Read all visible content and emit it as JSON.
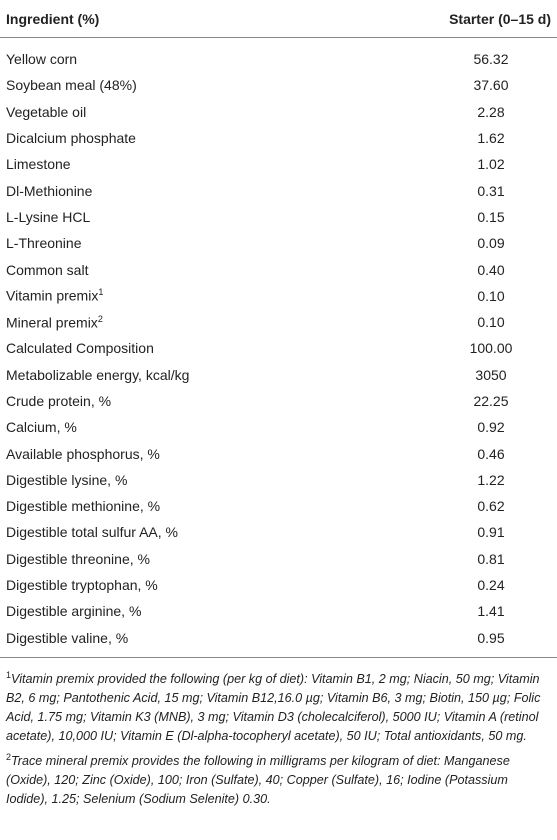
{
  "table": {
    "header": [
      "Ingredient (%)",
      "Starter (0–15 d)"
    ],
    "rows": [
      {
        "ingredient": "Yellow corn",
        "value": "56.32"
      },
      {
        "ingredient": "Soybean meal (48%)",
        "value": "37.60"
      },
      {
        "ingredient": "Vegetable oil",
        "value": "2.28"
      },
      {
        "ingredient": "Dicalcium phosphate",
        "value": "1.62"
      },
      {
        "ingredient": "Limestone",
        "value": "1.02"
      },
      {
        "ingredient": "Dl-Methionine",
        "value": "0.31"
      },
      {
        "ingredient": "L-Lysine HCL",
        "value": "0.15"
      },
      {
        "ingredient": "L-Threonine",
        "value": "0.09"
      },
      {
        "ingredient": "Common salt",
        "value": "0.40"
      },
      {
        "ingredient": "Vitamin premix",
        "sup": "1",
        "value": "0.10"
      },
      {
        "ingredient": "Mineral premix",
        "sup": "2",
        "value": "0.10"
      },
      {
        "ingredient": "Calculated Composition",
        "value": "100.00"
      },
      {
        "ingredient": "Metabolizable energy, kcal/kg",
        "value": "3050"
      },
      {
        "ingredient": "Crude protein, %",
        "value": "22.25"
      },
      {
        "ingredient": "Calcium, %",
        "value": "0.92"
      },
      {
        "ingredient": "Available phosphorus, %",
        "value": "0.46"
      },
      {
        "ingredient": "Digestible lysine, %",
        "value": "1.22"
      },
      {
        "ingredient": "Digestible methionine, %",
        "value": "0.62"
      },
      {
        "ingredient": "Digestible total sulfur AA, %",
        "value": "0.91"
      },
      {
        "ingredient": "Digestible threonine, %",
        "value": "0.81"
      },
      {
        "ingredient": "Digestible tryptophan, %",
        "value": "0.24"
      },
      {
        "ingredient": "Digestible arginine, %",
        "value": "1.41"
      },
      {
        "ingredient": "Digestible valine, %",
        "value": "0.95"
      }
    ]
  },
  "footnotes": [
    {
      "marker": "1",
      "text": "Vitamin premix provided the following (per kg of diet): Vitamin B1, 2 mg; Niacin, 50 mg; Vitamin B2, 6 mg; Pantothenic Acid, 15 mg; Vitamin B12,16.0 µg; Vitamin B6, 3 mg; Biotin, 150 µg; Folic Acid, 1.75 mg; Vitamin K3 (MNB), 3 mg; Vitamin D3 (cholecalciferol), 5000 IU; Vitamin A (retinol acetate), 10,000 IU; Vitamin E (Dl-alpha-tocopheryl acetate), 50 IU; Total antioxidants, 50 mg."
    },
    {
      "marker": "2",
      "text": "Trace mineral premix provides the following in milligrams per kilogram of diet: Manganese (Oxide), 120; Zinc (Oxide), 100; Iron (Sulfate), 40; Copper (Sulfate), 16; Iodine (Potassium Iodide), 1.25; Selenium (Sodium Selenite) 0.30."
    }
  ]
}
